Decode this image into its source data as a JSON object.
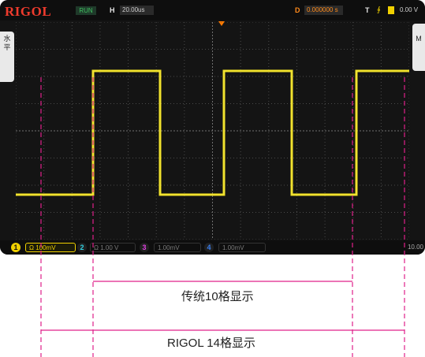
{
  "header": {
    "brand": "RIGOL",
    "run_status": "RUN",
    "h_label": "H",
    "h_value": "20.00us",
    "d_label": "D",
    "d_value": "0.000000 s",
    "t_label": "T",
    "trigger_edge": "∮",
    "ch_indicator": "1",
    "trigger_level": "0.00 V"
  },
  "side_tabs": {
    "left": "水平",
    "right": "M"
  },
  "channels": [
    {
      "num": "1",
      "value": "Ω 100mV",
      "color": "#f0d000",
      "active": true
    },
    {
      "num": "2",
      "value": "Ω 1.00 V",
      "color": "#2fd0e0",
      "active": false
    },
    {
      "num": "3",
      "value": "1.00mV",
      "color": "#e040e0",
      "active": false
    },
    {
      "num": "4",
      "value": "1.00mV",
      "color": "#3a7ff0",
      "active": false
    }
  ],
  "bottom_right": "10.00",
  "annotations": {
    "traditional": "传统10格显示",
    "rigol": "RIGOL 14格显示"
  },
  "colors": {
    "trace": "#f0e020",
    "guide": "#e0208a",
    "grid": "#4a4a4a"
  }
}
